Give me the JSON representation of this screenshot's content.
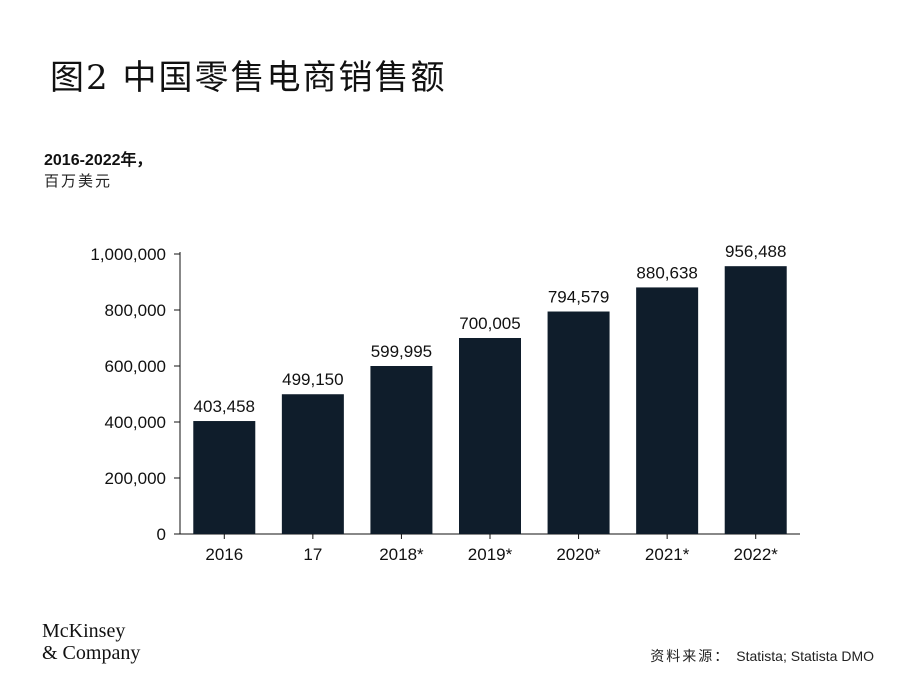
{
  "header": {
    "title": "图2 中国零售电商销售额",
    "subtitle": "2016-2022年，",
    "unit": "百万美元"
  },
  "footer": {
    "logo_line1": "McKinsey",
    "logo_line2": "& Company",
    "source_label": "资料来源：",
    "source_text": "Statista; Statista DMO"
  },
  "colors": {
    "bar": "#0f1d2b",
    "axis": "#111111"
  },
  "chart_data": {
    "type": "bar",
    "categories": [
      "2016",
      "17",
      "2018*",
      "2019*",
      "2020*",
      "2021*",
      "2022*"
    ],
    "values": [
      403458,
      499150,
      599995,
      700005,
      794579,
      880638,
      956488
    ],
    "value_labels": [
      "403,458",
      "499,150",
      "599,995",
      "700,005",
      "794,579",
      "880,638",
      "956,488"
    ],
    "ylim": [
      0,
      1000000
    ],
    "yticks": [
      0,
      200000,
      400000,
      600000,
      800000,
      1000000
    ],
    "ytick_labels": [
      "0",
      "200,000",
      "400,000",
      "600,000",
      "800,000",
      "1,000,000"
    ],
    "xlabel": "",
    "ylabel": "",
    "grid": false,
    "legend": "none"
  }
}
